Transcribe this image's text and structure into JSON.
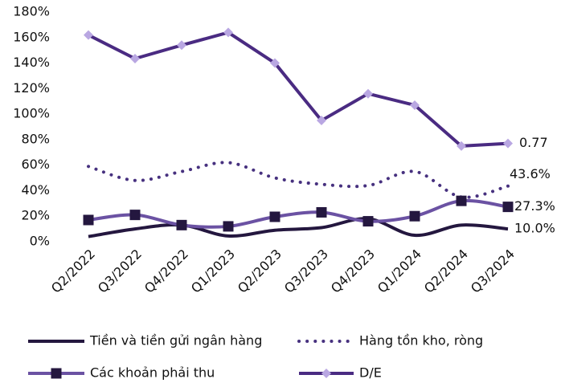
{
  "chart_data": {
    "type": "line",
    "categories": [
      "Q2/2022",
      "Q3/2022",
      "Q4/2022",
      "Q1/2023",
      "Q2/2023",
      "Q3/2023",
      "Q4/2023",
      "Q1/2024",
      "Q2/2024",
      "Q3/2024"
    ],
    "series": [
      {
        "name": "Tiền và tiền gửi ngân hàng",
        "color": "#24173f",
        "smooth": true,
        "values": [
          4,
          10,
          13,
          4.5,
          9,
          11,
          18,
          5,
          13,
          10.0
        ],
        "value_labels": [
          null,
          null,
          null,
          null,
          null,
          null,
          null,
          null,
          null,
          "10.0%"
        ]
      },
      {
        "name": "Hàng tồn kho, ròng",
        "color": "#47317f",
        "smooth": true,
        "dash": "dotted",
        "values": [
          59,
          48,
          55,
          62,
          50,
          45,
          44,
          55,
          35,
          43.6
        ],
        "value_labels": [
          null,
          null,
          null,
          null,
          null,
          null,
          null,
          null,
          null,
          "43.6%"
        ]
      },
      {
        "name": "Các khoản phải thu",
        "color": "#6b52a3",
        "smooth": true,
        "marker": "square",
        "marker_color": "#24173f",
        "values": [
          17,
          21,
          13,
          12,
          19.5,
          23,
          16,
          20,
          32,
          27.3
        ],
        "value_labels": [
          null,
          null,
          null,
          null,
          null,
          null,
          null,
          null,
          null,
          "27.3%"
        ]
      },
      {
        "name": "D/E",
        "color": "#4a2b82",
        "marker": "diamond",
        "marker_color": "#b9a7e2",
        "values": [
          162,
          143.5,
          154,
          164,
          140,
          95,
          116,
          107,
          75,
          77
        ],
        "value_labels": [
          null,
          null,
          null,
          null,
          null,
          null,
          null,
          null,
          null,
          "0.77"
        ]
      }
    ],
    "ylim": [
      0,
      180
    ],
    "yticks": [
      {
        "value": 0,
        "label": "0%"
      },
      {
        "value": 20,
        "label": "20%"
      },
      {
        "value": 40,
        "label": "40%"
      },
      {
        "value": 60,
        "label": "60%"
      },
      {
        "value": 80,
        "label": "80%"
      },
      {
        "value": 100,
        "label": "100%"
      },
      {
        "value": 120,
        "label": "120%"
      },
      {
        "value": 140,
        "label": "140%"
      },
      {
        "value": 160,
        "label": "160%"
      },
      {
        "value": 180,
        "label": "180%"
      }
    ],
    "grid": false,
    "legend": "bottom"
  }
}
